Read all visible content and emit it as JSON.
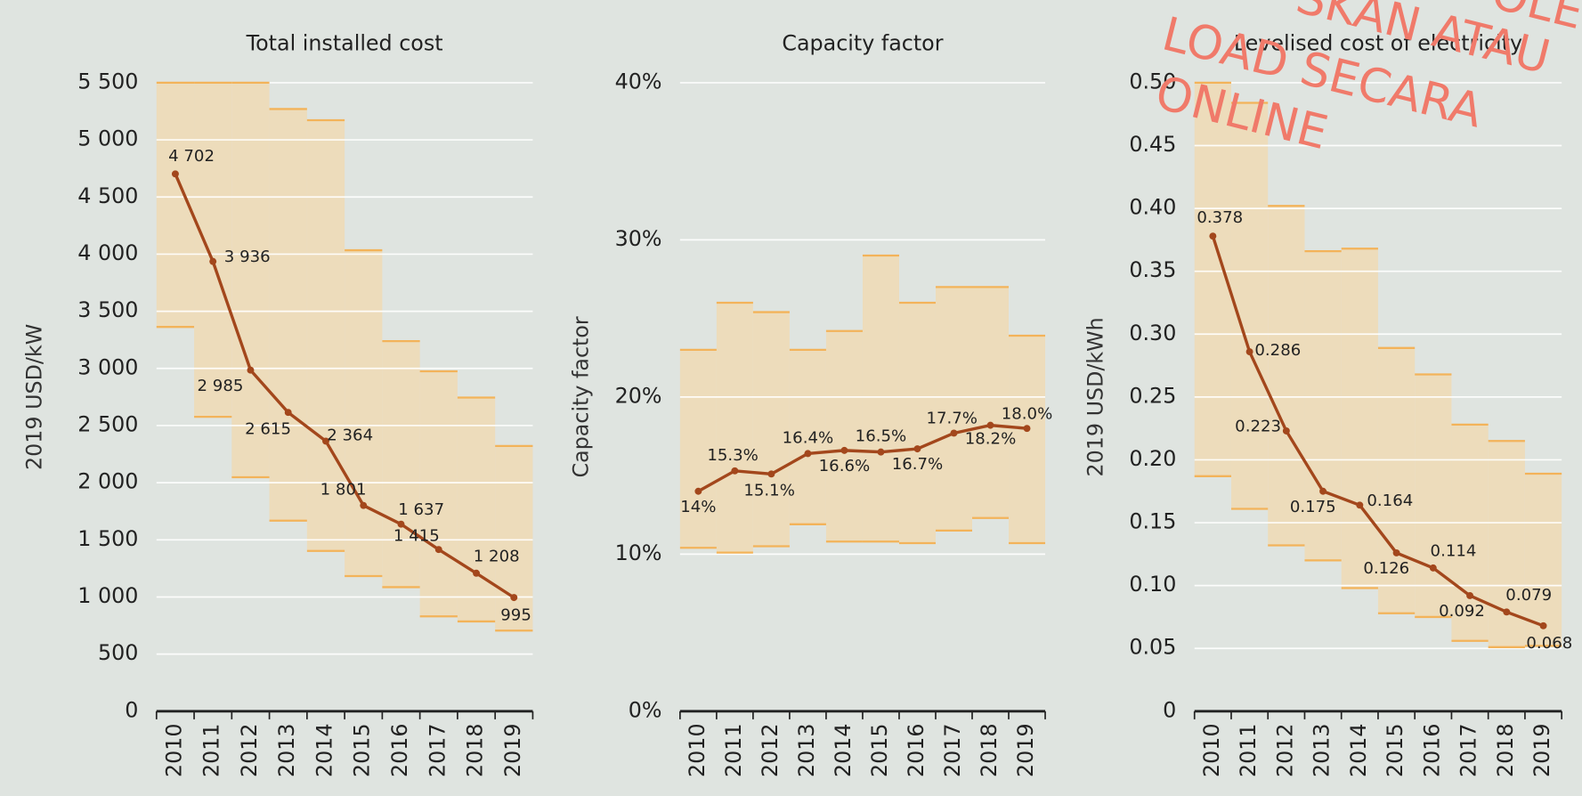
{
  "chart_data": [
    {
      "type": "line",
      "title": "Total installed cost",
      "ylabel": "2019 USD/kW",
      "categories": [
        "2010",
        "2011",
        "2012",
        "2013",
        "2014",
        "2015",
        "2016",
        "2017",
        "2018",
        "2019"
      ],
      "values": [
        4702,
        3936,
        2985,
        2615,
        2364,
        1801,
        1637,
        1415,
        1208,
        995
      ],
      "value_labels": [
        "4 702",
        "3 936",
        "2 985",
        "2 615",
        "2 364",
        "1 801",
        "1 637",
        "1 415",
        "1 208",
        "995"
      ],
      "band_low": [
        3363,
        2577,
        2048,
        1668,
        1403,
        1183,
        1086,
        830,
        786,
        706
      ],
      "band_high": [
        5500,
        5500,
        5500,
        5270,
        5172,
        4034,
        3239,
        2975,
        2745,
        2321
      ],
      "color": "#a3471c",
      "band_color": "#eddcbb",
      "band_edge_color": "#f3b35a",
      "ylim": [
        0,
        5500
      ],
      "yticks": [
        0,
        500,
        {
          "value": 1000,
          "label": "1 000"
        },
        {
          "value": 1500,
          "label": "1 500"
        },
        {
          "value": 2000,
          "label": "2 000"
        },
        {
          "value": 2500,
          "label": "2 500"
        },
        {
          "value": 3000,
          "label": "3 000"
        },
        {
          "value": 3500,
          "label": "3 500"
        },
        {
          "value": 4000,
          "label": "4 000"
        },
        {
          "value": 4500,
          "label": "4 500"
        },
        {
          "value": 5000,
          "label": "5 000"
        },
        {
          "value": 5500,
          "label": "5 500"
        }
      ],
      "grid": true
    },
    {
      "type": "line",
      "title": "Capacity factor",
      "ylabel": "Capacity factor",
      "categories": [
        "2010",
        "2011",
        "2012",
        "2013",
        "2014",
        "2015",
        "2016",
        "2017",
        "2018",
        "2019"
      ],
      "values": [
        14,
        15.3,
        15.1,
        16.4,
        16.6,
        16.5,
        16.7,
        17.7,
        18.2,
        18
      ],
      "value_labels": [
        "14%",
        "15.3%",
        "15.1%",
        "16.4%",
        "16.6%",
        "16.5%",
        "16.7%",
        "17.7%",
        "18.2%",
        "18.0%"
      ],
      "band_low": [
        10.4,
        10.1,
        10.5,
        11.9,
        10.8,
        10.8,
        10.7,
        11.5,
        12.3,
        10.7
      ],
      "band_high": [
        23,
        26,
        25.4,
        23,
        24.2,
        29,
        26,
        27,
        27,
        23.9
      ],
      "color": "#a3471c",
      "band_color": "#eddcbb",
      "band_edge_color": "#f3b35a",
      "ylim": [
        0,
        40
      ],
      "yticks": [
        {
          "value": 0,
          "label": "0%"
        },
        {
          "value": 10,
          "label": "10%"
        },
        {
          "value": 20,
          "label": "20%"
        },
        {
          "value": 30,
          "label": "30%"
        },
        {
          "value": 40,
          "label": "40%"
        }
      ],
      "grid": true
    },
    {
      "type": "line",
      "title": "Levelised cost of electricity",
      "ylabel": "2019 USD/kWh",
      "categories": [
        "2010",
        "2011",
        "2012",
        "2013",
        "2014",
        "2015",
        "2016",
        "2017",
        "2018",
        "2019"
      ],
      "values": [
        0.378,
        0.286,
        0.223,
        0.175,
        0.164,
        0.126,
        0.114,
        0.092,
        0.079,
        0.068
      ],
      "band_low": [
        0.187,
        0.161,
        0.132,
        0.12,
        0.098,
        0.078,
        0.075,
        0.056,
        0.051,
        0.052
      ],
      "band_high": [
        0.5,
        0.484,
        0.402,
        0.366,
        0.368,
        0.289,
        0.268,
        0.228,
        0.215,
        0.189
      ],
      "color": "#a3471c",
      "band_color": "#eddcbb",
      "band_edge_color": "#f3b35a",
      "ylim": [
        0,
        0.5
      ],
      "yticks": [
        0,
        {
          "value": 0.05,
          "label": "0.05"
        },
        {
          "value": 0.1,
          "label": "0.10"
        },
        {
          "value": 0.15,
          "label": "0.15"
        },
        {
          "value": 0.2,
          "label": "0.20"
        },
        {
          "value": 0.25,
          "label": "0.25"
        },
        {
          "value": 0.3,
          "label": "0.30"
        },
        {
          "value": 0.35,
          "label": "0.35"
        },
        {
          "value": 0.4,
          "label": "0.40"
        },
        {
          "value": 0.45,
          "label": "0.45"
        },
        {
          "value": 0.5,
          "label": "0.50"
        }
      ],
      "grid": true
    }
  ],
  "watermark": [
    "SKAN ATAU",
    "OLEH",
    "LOAD SECARA",
    "ONLINE"
  ]
}
